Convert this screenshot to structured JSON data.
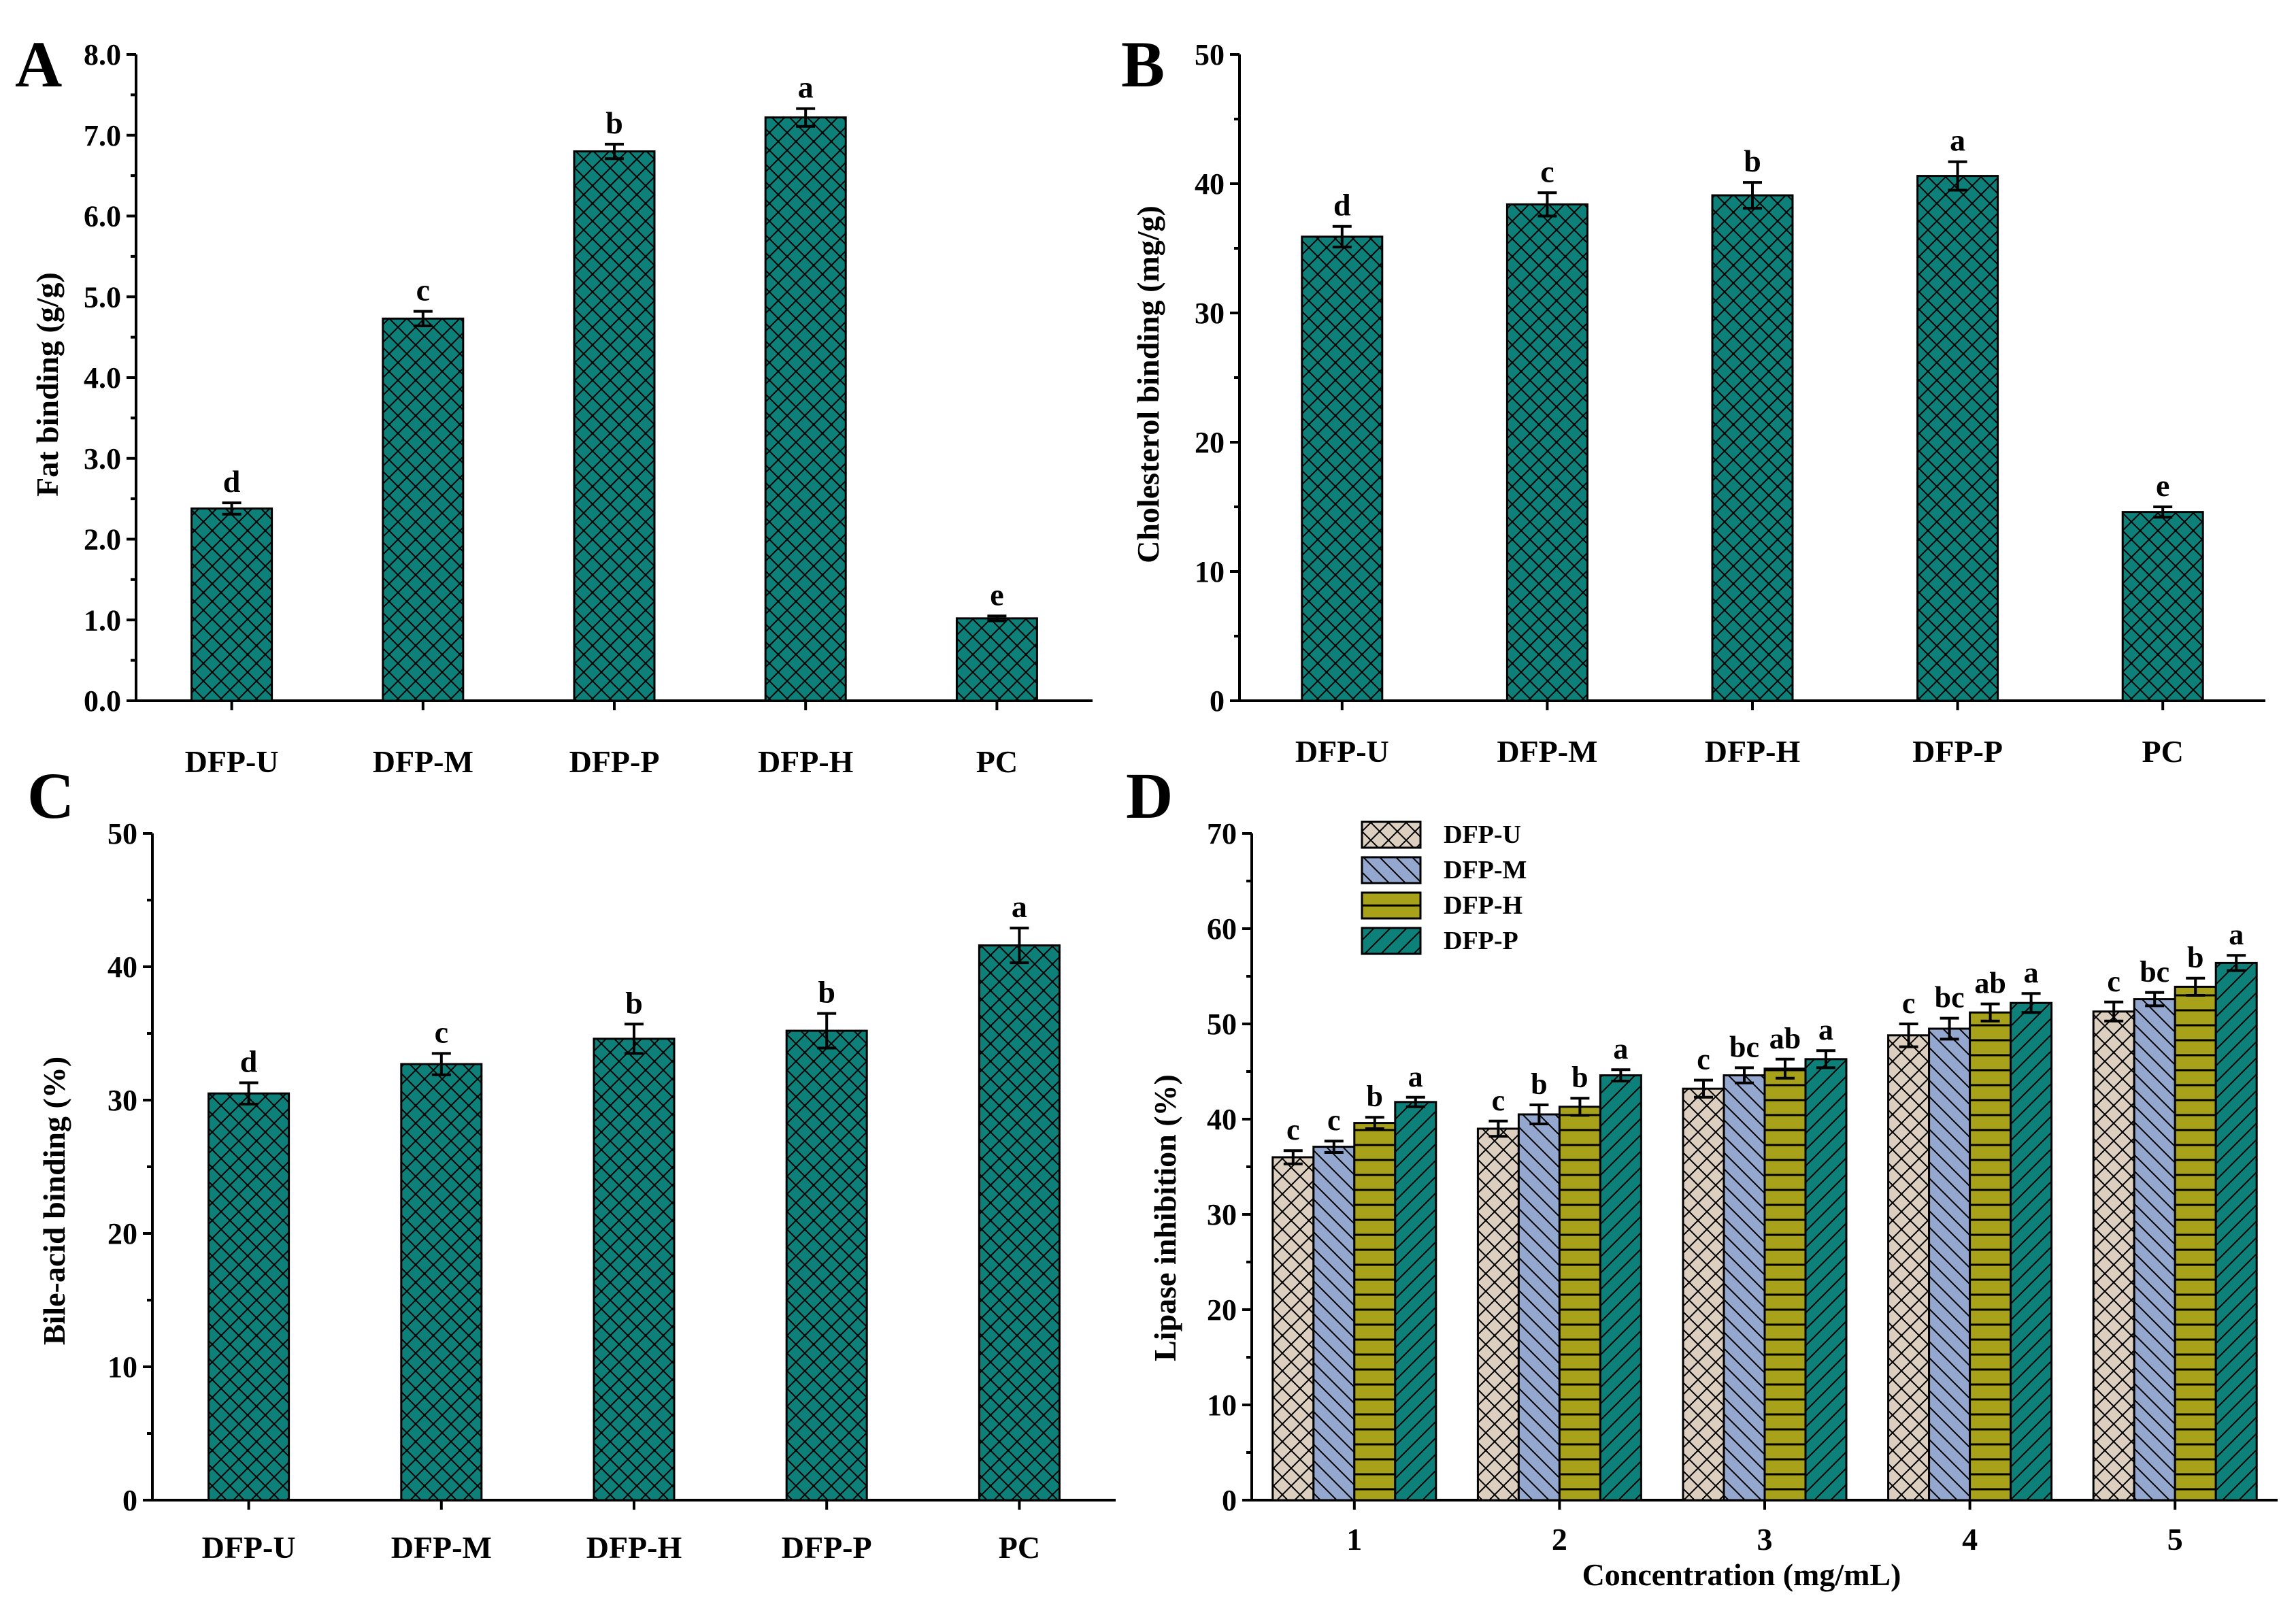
{
  "chart_data": [
    {
      "id": "A",
      "panel_label": "A",
      "type": "bar",
      "categories": [
        "DFP-U",
        "DFP-M",
        "DFP-P",
        "DFP-H",
        "PC"
      ],
      "values": [
        2.38,
        4.73,
        6.8,
        7.22,
        1.02
      ],
      "errors": [
        0.07,
        0.09,
        0.09,
        0.11,
        0.03
      ],
      "letters": [
        "d",
        "c",
        "b",
        "a",
        "e"
      ],
      "ylabel": "Fat binding  (g/g)",
      "xlabel": "",
      "ylim": [
        0,
        8
      ],
      "yticks": [
        "0.0",
        "1.0",
        "2.0",
        "3.0",
        "4.0",
        "5.0",
        "6.0",
        "7.0",
        "8.0"
      ],
      "color": "#0d8079",
      "hatch": "crosshatch"
    },
    {
      "id": "B",
      "panel_label": "B",
      "type": "bar",
      "categories": [
        "DFP-U",
        "DFP-M",
        "DFP-H",
        "DFP-P",
        "PC"
      ],
      "values": [
        35.9,
        38.4,
        39.1,
        40.6,
        14.6
      ],
      "errors": [
        0.8,
        0.9,
        1.0,
        1.1,
        0.4
      ],
      "letters": [
        "d",
        "c",
        "b",
        "a",
        "e"
      ],
      "ylabel": "Cholesterol binding  (mg/g)",
      "xlabel": "",
      "ylim": [
        0,
        50
      ],
      "yticks": [
        "0",
        "10",
        "20",
        "30",
        "40",
        "50"
      ],
      "color": "#0d8079",
      "hatch": "crosshatch"
    },
    {
      "id": "C",
      "panel_label": "C",
      "type": "bar",
      "categories": [
        "DFP-U",
        "DFP-M",
        "DFP-H",
        "DFP-P",
        "PC"
      ],
      "values": [
        30.5,
        32.7,
        34.6,
        35.2,
        41.6
      ],
      "errors": [
        0.8,
        0.8,
        1.1,
        1.3,
        1.3
      ],
      "letters": [
        "d",
        "c",
        "b",
        "b",
        "a"
      ],
      "ylabel": "Bile-acid binding  (%)",
      "xlabel": "",
      "ylim": [
        0,
        50
      ],
      "yticks": [
        "0",
        "10",
        "20",
        "30",
        "40",
        "50"
      ],
      "color": "#0d8079",
      "hatch": "crosshatch"
    },
    {
      "id": "D",
      "panel_label": "D",
      "type": "bar",
      "categories": [
        "1",
        "2",
        "3",
        "4",
        "5"
      ],
      "series": [
        {
          "name": "DFP-U",
          "values": [
            36.0,
            39.0,
            43.2,
            48.8,
            51.3
          ],
          "errors": [
            0.7,
            0.8,
            0.9,
            1.2,
            1.0
          ],
          "letters": [
            "c",
            "c",
            "c",
            "c",
            "c"
          ],
          "color": "#dccfc0",
          "hatch": "crosshatch"
        },
        {
          "name": "DFP-M",
          "values": [
            37.1,
            40.5,
            44.6,
            49.5,
            52.6
          ],
          "errors": [
            0.6,
            1.0,
            0.8,
            1.1,
            0.7
          ],
          "letters": [
            "c",
            "b",
            "bc",
            "bc",
            "bc"
          ],
          "color": "#94a8cf",
          "hatch": "backslash"
        },
        {
          "name": "DFP-H",
          "values": [
            39.6,
            41.3,
            45.3,
            51.2,
            53.9
          ],
          "errors": [
            0.6,
            0.9,
            1.0,
            0.9,
            0.9
          ],
          "letters": [
            "b",
            "b",
            "ab",
            "ab",
            "b"
          ],
          "color": "#a8a21b",
          "hatch": "horizontal"
        },
        {
          "name": "DFP-P",
          "values": [
            41.8,
            44.6,
            46.3,
            52.2,
            56.4
          ],
          "errors": [
            0.5,
            0.6,
            0.9,
            1.0,
            0.8
          ],
          "letters": [
            "a",
            "a",
            "a",
            "a",
            "a"
          ],
          "color": "#0d8079",
          "hatch": "slash"
        }
      ],
      "ylabel": "Lipase inhibition  (%)",
      "xlabel": "Concentration  (mg/mL)",
      "ylim": [
        0,
        70
      ],
      "yticks": [
        "0",
        "10",
        "20",
        "30",
        "40",
        "50",
        "60",
        "70"
      ],
      "legend": "top-left"
    }
  ]
}
